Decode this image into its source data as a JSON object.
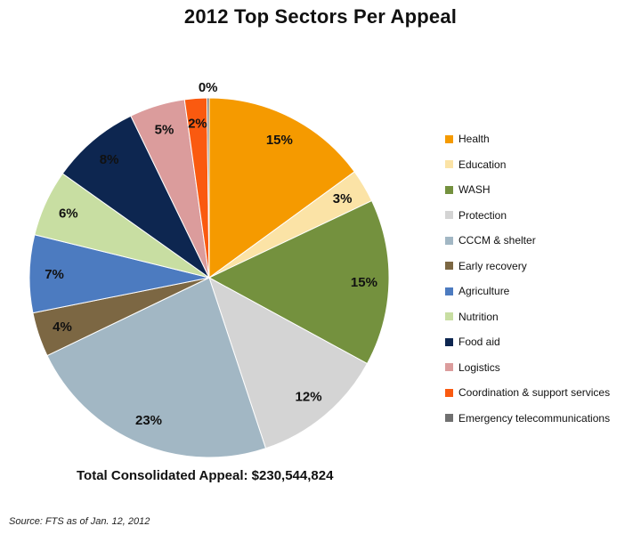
{
  "chart_data": {
    "type": "pie",
    "title": "2012 Top Sectors Per Appeal",
    "slices": [
      {
        "name": "Health",
        "value": 15,
        "label": "15%",
        "color": "#F59A00"
      },
      {
        "name": "Education",
        "value": 3,
        "label": "3%",
        "color": "#FBE3A6"
      },
      {
        "name": "WASH",
        "value": 15,
        "label": "15%",
        "color": "#74913E"
      },
      {
        "name": "Protection",
        "value": 12,
        "label": "12%",
        "color": "#D4D4D4"
      },
      {
        "name": "CCCM & shelter",
        "value": 23,
        "label": "23%",
        "color": "#A2B7C4"
      },
      {
        "name": "Early recovery",
        "value": 4,
        "label": "4%",
        "color": "#7C6743"
      },
      {
        "name": "Agriculture",
        "value": 7,
        "label": "7%",
        "color": "#4C7BC0"
      },
      {
        "name": "Nutrition",
        "value": 6,
        "label": "6%",
        "color": "#C8DEA2"
      },
      {
        "name": "Food aid",
        "value": 8,
        "label": "8%",
        "color": "#0D2650"
      },
      {
        "name": "Logistics",
        "value": 5,
        "label": "5%",
        "color": "#DB9C9C"
      },
      {
        "name": "Coordination & support services",
        "value": 2,
        "label": "2%",
        "color": "#FA5A10"
      },
      {
        "name": "Emergency telecommunications",
        "value": 0.2,
        "label": "0%",
        "color": "#707070"
      }
    ],
    "legend_position": "right"
  },
  "total_label": "Total Consolidated Appeal: $230,544,824",
  "source_note": "Source:  FTS as of Jan. 12, 2012"
}
